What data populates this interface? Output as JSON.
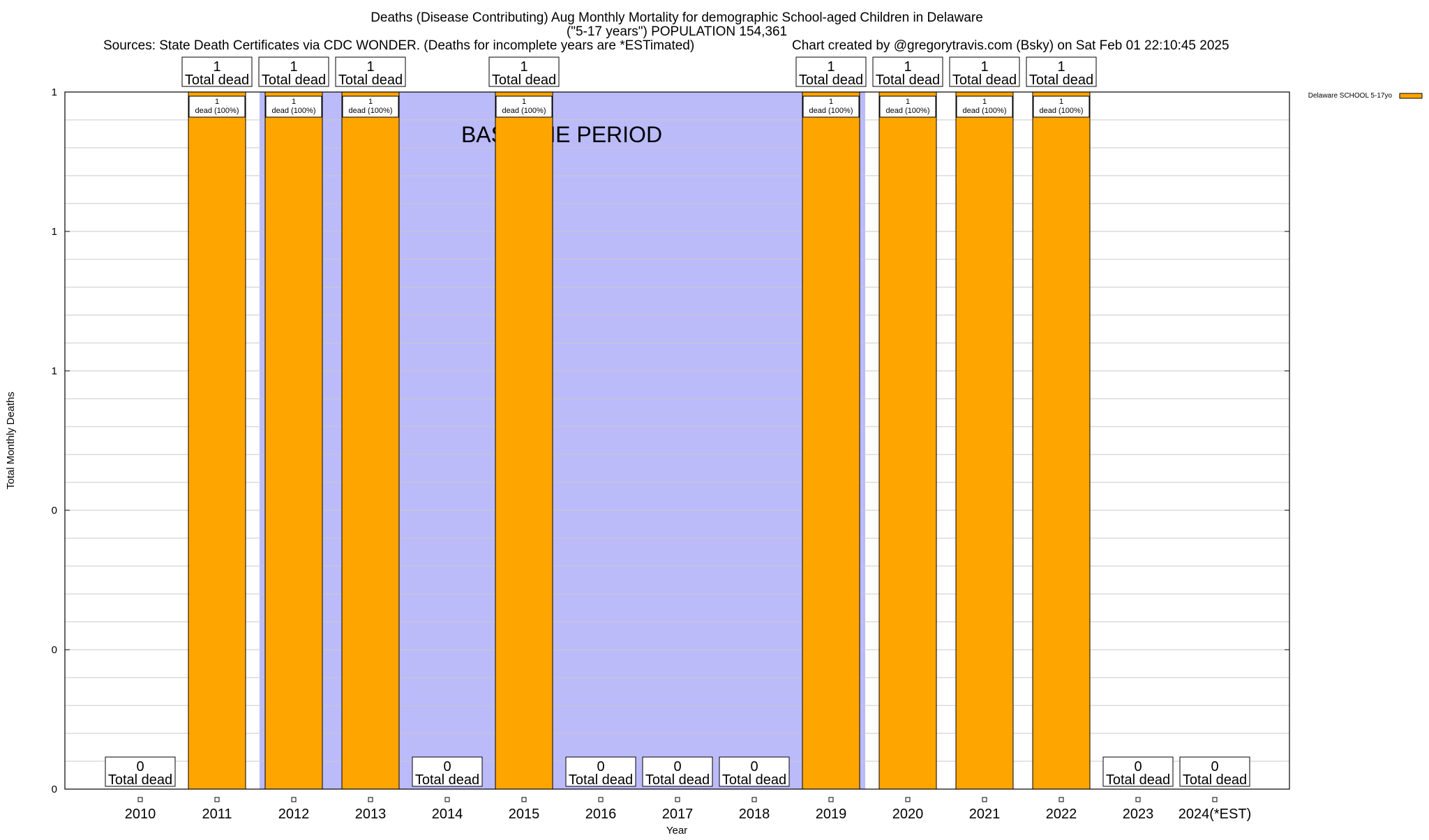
{
  "header": {
    "title_line1": "Deaths (Disease Contributing) Aug Monthly Mortality for demographic School-aged Children in Delaware",
    "title_line2": "(\"5-17 years\") POPULATION 154,361",
    "sources": "Sources: State Death Certificates via CDC WONDER. (Deaths for incomplete years are *ESTimated)",
    "credit": "Chart created by @gregorytravis.com (Bsky) on Sat Feb 01 22:10:45 2025"
  },
  "colors": {
    "bar": "#ffa500",
    "baseline": "#bbbbfa",
    "grid": "#c8c8c8"
  },
  "chart_data": {
    "type": "bar",
    "title": "Deaths (Disease Contributing) Aug Monthly Mortality for demographic School-aged Children in Delaware",
    "xlabel": "Year",
    "ylabel": "Total Monthly Deaths",
    "categories": [
      "2010",
      "2011",
      "2012",
      "2013",
      "2014",
      "2015",
      "2016",
      "2017",
      "2018",
      "2019",
      "2020",
      "2021",
      "2022",
      "2023",
      "2024(*EST)"
    ],
    "series": [
      {
        "name": "Delaware SCHOOL 5-17yo",
        "values": [
          0,
          1,
          1,
          1,
          0,
          1,
          0,
          0,
          0,
          1,
          1,
          1,
          1,
          0,
          0
        ]
      }
    ],
    "total_labels": [
      "0",
      "1",
      "1",
      "1",
      "0",
      "1",
      "0",
      "0",
      "0",
      "1",
      "1",
      "1",
      "1",
      "0",
      "0"
    ],
    "total_suffix": "Total dead",
    "inner_count": "1",
    "inner_label": "dead (100%)",
    "ylim": [
      0,
      1
    ],
    "yticks": [
      0,
      0.2,
      0.4,
      0.6,
      0.8,
      1
    ],
    "ytick_labels": [
      "0",
      "0",
      "0",
      "1",
      "1",
      "1"
    ],
    "grid": true,
    "legend_position": "top-right",
    "annotation": "BASELINE PERIOD",
    "baseline_period": [
      "2012",
      "2019"
    ]
  }
}
